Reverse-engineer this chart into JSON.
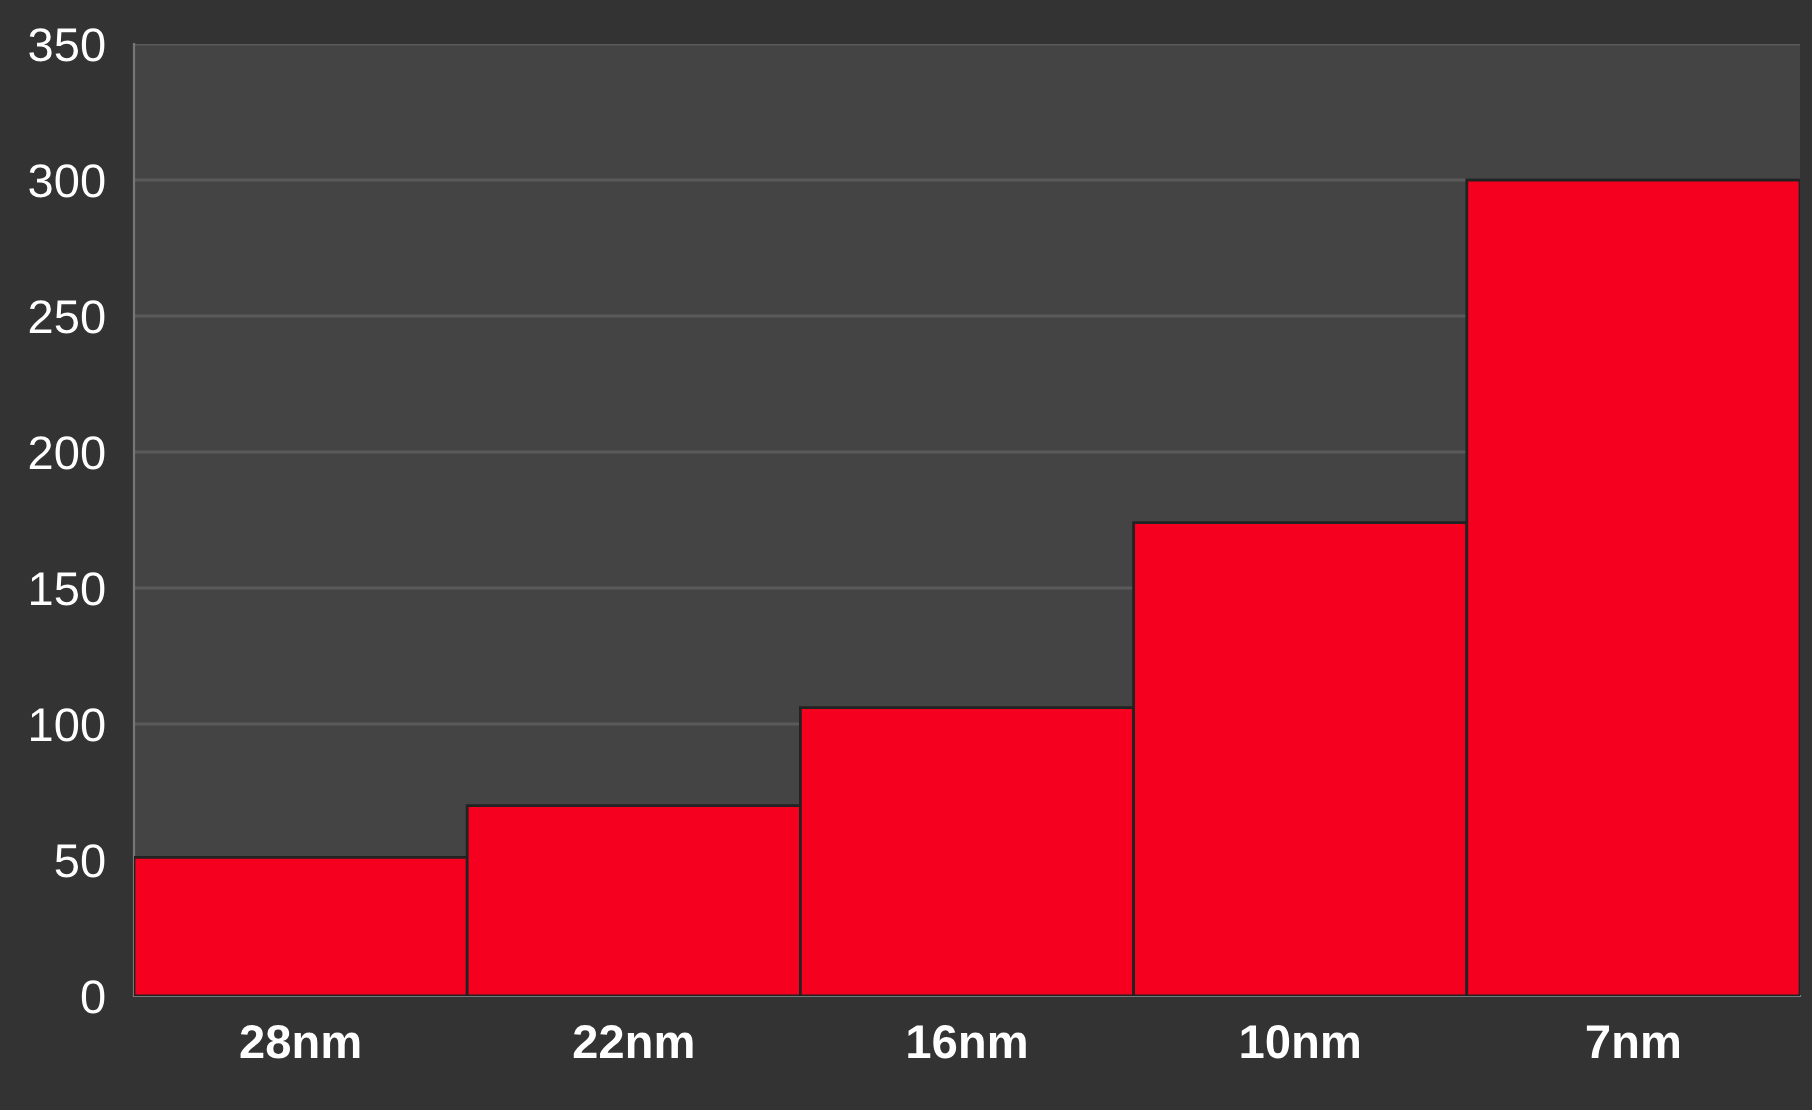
{
  "chart_data": {
    "type": "bar",
    "categories": [
      "28nm",
      "22nm",
      "16nm",
      "10nm",
      "7nm"
    ],
    "values": [
      51,
      70,
      106,
      174,
      300
    ],
    "color": "#f5001e",
    "ylim": [
      0,
      350
    ],
    "yticks": [
      0,
      50,
      100,
      150,
      200,
      250,
      300,
      350
    ],
    "grid": "y"
  }
}
